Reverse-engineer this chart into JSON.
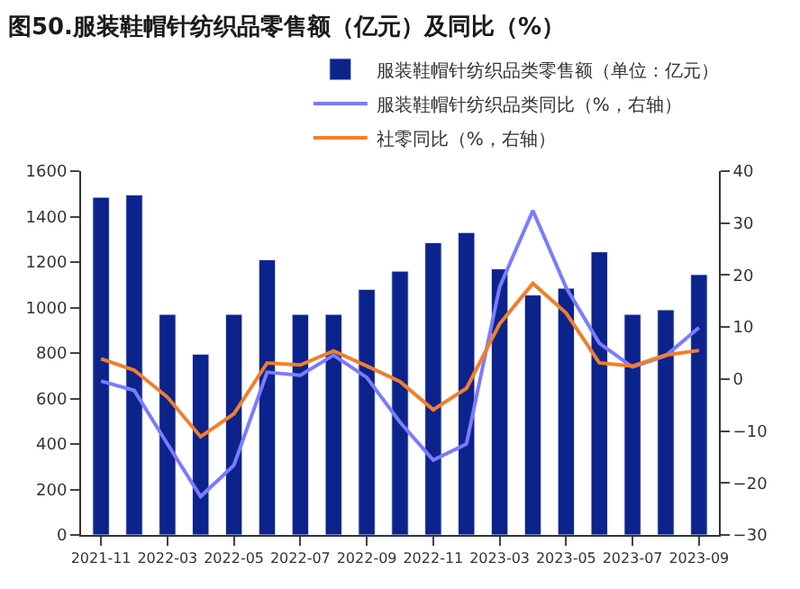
{
  "chart_data": {
    "type": "bar",
    "title": "图50.服装鞋帽针纺织品零售额（亿元）及同比（%）",
    "categories": [
      "2021-11",
      null,
      "2022-03",
      null,
      "2022-05",
      null,
      "2022-07",
      null,
      "2022-09",
      null,
      "2022-11",
      null,
      "2023-03",
      null,
      "2023-05",
      null,
      "2023-07",
      null,
      "2023-09"
    ],
    "series": [
      {
        "name": "服装鞋帽针纺织品类零售额（单位：亿元）",
        "color": "#0c238c",
        "values": [
          1485,
          1495,
          970,
          795,
          970,
          1210,
          970,
          970,
          1080,
          1160,
          1285,
          1330,
          1170,
          1055,
          1085,
          1245,
          970,
          990,
          1145
        ]
      },
      {
        "name": "服装鞋帽针纺织品类同比（%，右轴）",
        "type": "line",
        "axis": "y2",
        "color": "#7b7bff",
        "values": [
          -0.4,
          -2.2,
          -12.5,
          -22.6,
          -16.6,
          1.3,
          0.7,
          4.6,
          0.3,
          -8.3,
          -15.6,
          -12.5,
          17.7,
          32.4,
          17.6,
          6.9,
          2.3,
          4.5,
          9.9
        ]
      },
      {
        "name": "社零同比（%，右轴）",
        "type": "line",
        "axis": "y2",
        "color": "#f07f2b",
        "values": [
          3.9,
          1.7,
          -3.5,
          -11.1,
          -6.7,
          3.1,
          2.7,
          5.4,
          2.5,
          -0.5,
          -5.9,
          -1.8,
          10.6,
          18.4,
          12.7,
          3.1,
          2.5,
          4.6,
          5.5
        ]
      }
    ],
    "ylim": [
      0,
      1600
    ],
    "yticks": [
      0,
      200,
      400,
      600,
      800,
      1000,
      1200,
      1400,
      1600
    ],
    "y2lim": [
      -30,
      40
    ],
    "y2ticks": [
      -30,
      -20,
      -10,
      0,
      10,
      20,
      30,
      40
    ],
    "legend": "top",
    "marker": "none"
  }
}
